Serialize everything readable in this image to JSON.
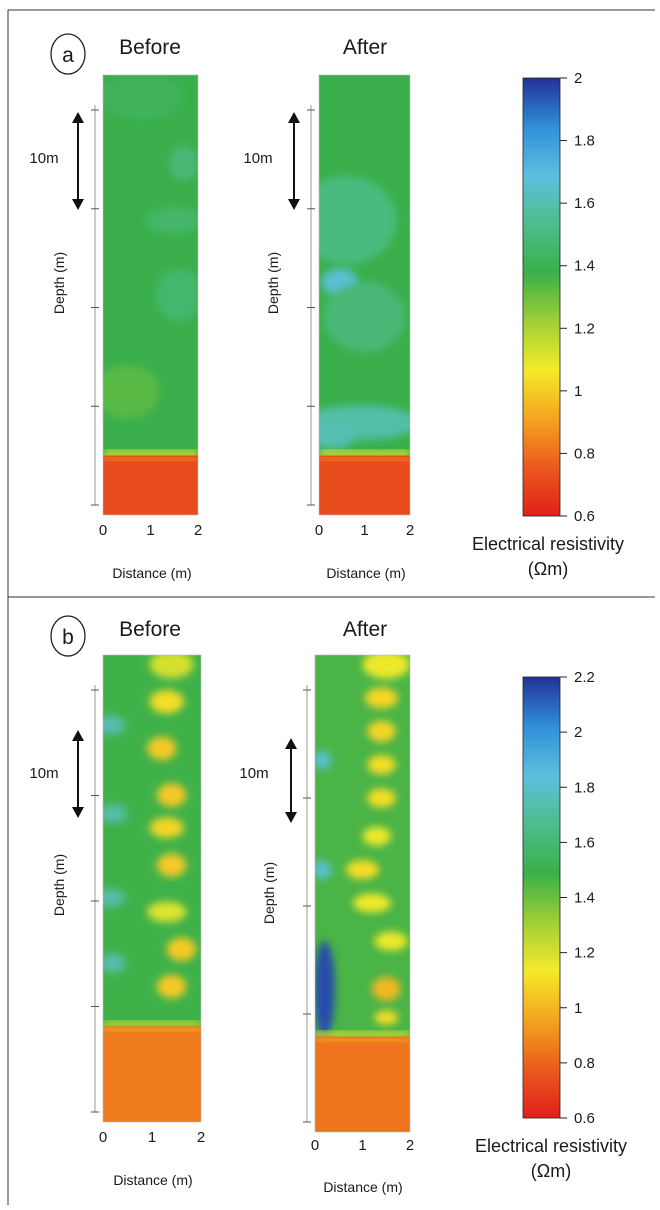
{
  "colors": {
    "scale": [
      "#e0201b",
      "#ec5a1e",
      "#f4a41f",
      "#f5ea2a",
      "#9fd036",
      "#3aaf4a",
      "#4fbd8d",
      "#5cbfe0",
      "#2f8fd6",
      "#23319a"
    ],
    "axis": "#555555",
    "frame": "#222222"
  },
  "panels": [
    {
      "letter": "a",
      "colorbar": {
        "ticks": [
          "2",
          "1.8",
          "1.6",
          "1.4",
          "1.2",
          "1",
          "0.8",
          "0.6"
        ],
        "min": 0.6,
        "max": 2.0,
        "title": "Electrical resistivity",
        "unit": "(Ωm)"
      },
      "plots": [
        {
          "title": "Before",
          "xlabel": "Distance (m)",
          "ylabel": "Depth (m)",
          "xticks": [
            "0",
            "1",
            "2"
          ],
          "scale_label": "10m",
          "background": 1.38,
          "interface_depth": 0.865,
          "lower_value": 0.72,
          "features": [
            {
              "x": 0.8,
              "y": 0.05,
              "rx": 0.9,
              "ry": 0.05,
              "v": 1.42
            },
            {
              "x": 1.7,
              "y": 0.2,
              "rx": 0.3,
              "ry": 0.04,
              "v": 1.48
            },
            {
              "x": 1.5,
              "y": 0.33,
              "rx": 0.6,
              "ry": 0.03,
              "v": 1.45
            },
            {
              "x": 1.6,
              "y": 0.5,
              "rx": 0.5,
              "ry": 0.06,
              "v": 1.46
            },
            {
              "x": 0.5,
              "y": 0.72,
              "rx": 0.7,
              "ry": 0.06,
              "v": 1.33
            }
          ]
        },
        {
          "title": "After",
          "xlabel": "Distance (m)",
          "ylabel": "Depth (m)",
          "xticks": [
            "0",
            "1",
            "2"
          ],
          "scale_label": "10m",
          "background": 1.38,
          "interface_depth": 0.865,
          "lower_value": 0.72,
          "features": [
            {
              "x": 0.6,
              "y": 0.33,
              "rx": 1.1,
              "ry": 0.1,
              "v": 1.5
            },
            {
              "x": 0.45,
              "y": 0.47,
              "rx": 0.4,
              "ry": 0.03,
              "v": 1.66
            },
            {
              "x": 1.0,
              "y": 0.55,
              "rx": 0.9,
              "ry": 0.08,
              "v": 1.48
            },
            {
              "x": 0.9,
              "y": 0.79,
              "rx": 1.3,
              "ry": 0.04,
              "v": 1.58
            },
            {
              "x": 0.3,
              "y": 0.82,
              "rx": 0.5,
              "ry": 0.03,
              "v": 1.6
            }
          ]
        }
      ]
    },
    {
      "letter": "b",
      "colorbar": {
        "ticks": [
          "2.2",
          "2",
          "1.8",
          "1.6",
          "1.4",
          "1.2",
          "1",
          "0.8",
          "0.6"
        ],
        "min": 0.6,
        "max": 2.2,
        "title": "Electrical resistivity",
        "unit": "(Ωm)"
      },
      "plots": [
        {
          "title": "Before",
          "xlabel": "Distance (m)",
          "ylabel": "Depth (m)",
          "xticks": [
            "0",
            "1",
            "2"
          ],
          "scale_label": "10m",
          "background": 1.48,
          "interface_depth": 0.795,
          "lower_value": 0.86,
          "features": [
            {
              "x": 1.4,
              "y": 0.02,
              "rx": 0.45,
              "ry": 0.03,
              "v": 1.2
            },
            {
              "x": 1.3,
              "y": 0.1,
              "rx": 0.35,
              "ry": 0.025,
              "v": 1.1
            },
            {
              "x": 1.2,
              "y": 0.2,
              "rx": 0.3,
              "ry": 0.025,
              "v": 1.05
            },
            {
              "x": 1.4,
              "y": 0.3,
              "rx": 0.3,
              "ry": 0.025,
              "v": 1.05
            },
            {
              "x": 1.3,
              "y": 0.37,
              "rx": 0.35,
              "ry": 0.022,
              "v": 1.08
            },
            {
              "x": 1.4,
              "y": 0.45,
              "rx": 0.3,
              "ry": 0.025,
              "v": 1.05
            },
            {
              "x": 1.3,
              "y": 0.55,
              "rx": 0.4,
              "ry": 0.022,
              "v": 1.18
            },
            {
              "x": 1.6,
              "y": 0.63,
              "rx": 0.3,
              "ry": 0.025,
              "v": 1.05
            },
            {
              "x": 1.4,
              "y": 0.71,
              "rx": 0.3,
              "ry": 0.025,
              "v": 1.05
            },
            {
              "x": 0.15,
              "y": 0.15,
              "rx": 0.3,
              "ry": 0.02,
              "v": 1.75
            },
            {
              "x": 0.2,
              "y": 0.34,
              "rx": 0.3,
              "ry": 0.02,
              "v": 1.72
            },
            {
              "x": 0.15,
              "y": 0.52,
              "rx": 0.3,
              "ry": 0.02,
              "v": 1.72
            },
            {
              "x": 0.2,
              "y": 0.66,
              "rx": 0.25,
              "ry": 0.02,
              "v": 1.74
            }
          ]
        },
        {
          "title": "After",
          "xlabel": "Distance (m)",
          "ylabel": "Depth (m)",
          "xticks": [
            "0",
            "1",
            "2"
          ],
          "scale_label": "10m",
          "background": 1.46,
          "interface_depth": 0.8,
          "lower_value": 0.84,
          "features": [
            {
              "x": 1.5,
              "y": 0.02,
              "rx": 0.5,
              "ry": 0.03,
              "v": 1.15
            },
            {
              "x": 1.4,
              "y": 0.09,
              "rx": 0.35,
              "ry": 0.022,
              "v": 1.08
            },
            {
              "x": 1.4,
              "y": 0.16,
              "rx": 0.3,
              "ry": 0.022,
              "v": 1.08
            },
            {
              "x": 1.4,
              "y": 0.23,
              "rx": 0.3,
              "ry": 0.02,
              "v": 1.1
            },
            {
              "x": 1.4,
              "y": 0.3,
              "rx": 0.3,
              "ry": 0.02,
              "v": 1.1
            },
            {
              "x": 1.3,
              "y": 0.38,
              "rx": 0.3,
              "ry": 0.02,
              "v": 1.15
            },
            {
              "x": 1.0,
              "y": 0.45,
              "rx": 0.35,
              "ry": 0.02,
              "v": 1.1
            },
            {
              "x": 1.2,
              "y": 0.52,
              "rx": 0.4,
              "ry": 0.02,
              "v": 1.15
            },
            {
              "x": 1.6,
              "y": 0.6,
              "rx": 0.35,
              "ry": 0.02,
              "v": 1.15
            },
            {
              "x": 1.5,
              "y": 0.7,
              "rx": 0.3,
              "ry": 0.025,
              "v": 1.0
            },
            {
              "x": 1.5,
              "y": 0.76,
              "rx": 0.25,
              "ry": 0.015,
              "v": 1.1
            },
            {
              "x": 0.2,
              "y": 0.7,
              "rx": 0.22,
              "ry": 0.1,
              "v": 2.15
            },
            {
              "x": 0.15,
              "y": 0.22,
              "rx": 0.2,
              "ry": 0.02,
              "v": 1.8
            },
            {
              "x": 0.15,
              "y": 0.45,
              "rx": 0.2,
              "ry": 0.02,
              "v": 1.8
            }
          ]
        }
      ]
    }
  ]
}
